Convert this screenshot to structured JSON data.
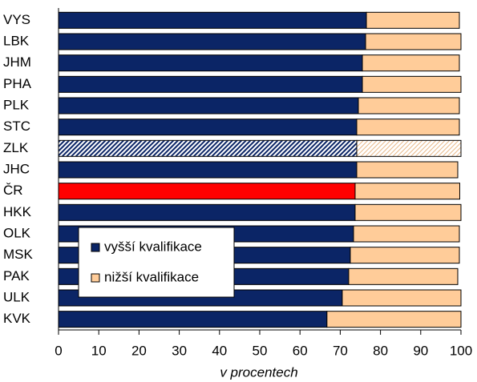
{
  "chart_data": {
    "type": "stacked-barh",
    "categories": [
      "VYS",
      "LBK",
      "JHM",
      "PHA",
      "PLK",
      "STC",
      "ZLK",
      "JHC",
      "ČR",
      "HKK",
      "OLK",
      "MSK",
      "PAK",
      "ULK",
      "KVK"
    ],
    "series": [
      {
        "name": "vyšší kvalifikace",
        "color": "#0b2566",
        "values": [
          76.5,
          76.3,
          75.5,
          75.5,
          74.5,
          74.1,
          74.1,
          74.1,
          73.7,
          73.7,
          73.3,
          72.5,
          72.1,
          70.5,
          66.7
        ],
        "point_colors": [
          null,
          null,
          null,
          null,
          null,
          null,
          "hatched",
          null,
          "#ff0000",
          null,
          null,
          null,
          null,
          null,
          null
        ]
      },
      {
        "name": "nižší kvalifikace",
        "color": "#ffcc99",
        "values": [
          23.1,
          23.7,
          24.1,
          24.5,
          25.1,
          25.5,
          25.9,
          25.1,
          26.0,
          26.3,
          26.3,
          27.1,
          27.1,
          29.5,
          33.3
        ],
        "point_colors": [
          null,
          null,
          null,
          null,
          null,
          null,
          "hatched",
          null,
          null,
          null,
          null,
          null,
          null,
          null,
          null
        ]
      }
    ],
    "x_label": "v procentech",
    "xlim": [
      0,
      100
    ],
    "xticks": [
      0,
      10,
      20,
      30,
      40,
      50,
      60,
      70,
      80,
      90,
      100
    ],
    "legend": "lower-left"
  }
}
